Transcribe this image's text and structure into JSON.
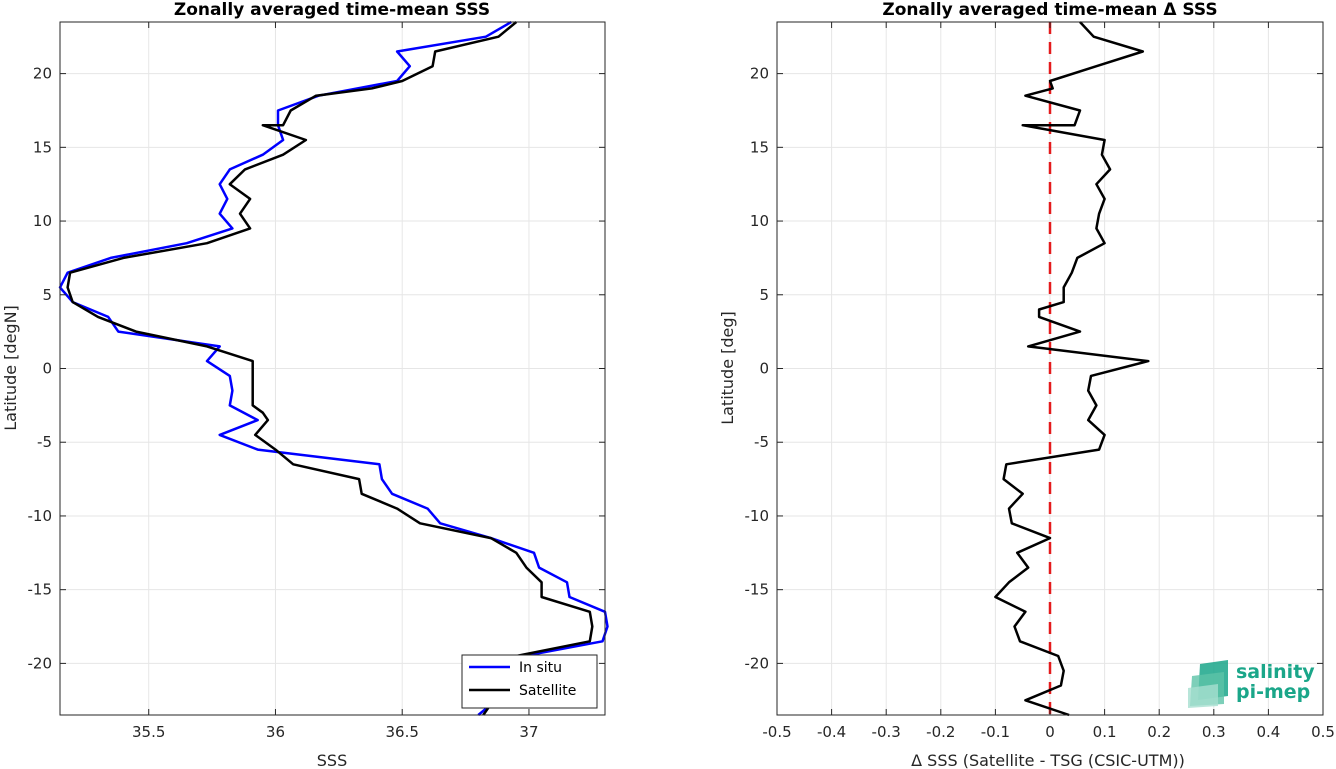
{
  "colors": {
    "in_situ": "#0000ff",
    "satellite": "#000000",
    "zero_line": "#e41a1c",
    "logo": "#1aa689"
  },
  "logo": {
    "line1": "salinity",
    "line2": "pi-mep"
  },
  "chart_data": [
    {
      "type": "line",
      "title": "Zonally averaged time-mean SSS",
      "xlabel": "SSS",
      "ylabel": "Latitude [degN]",
      "xlim": [
        35.15,
        37.3
      ],
      "ylim": [
        -23.5,
        23.5
      ],
      "xticks": [
        35.5,
        36,
        36.5,
        37
      ],
      "xtick_labels": [
        "35.5",
        "36",
        "36.5",
        "37"
      ],
      "yticks": [
        -20,
        -15,
        -10,
        -5,
        0,
        5,
        10,
        15,
        20
      ],
      "ytick_labels": [
        "-20",
        "-15",
        "-10",
        "-5",
        "0",
        "5",
        "10",
        "15",
        "20"
      ],
      "grid": true,
      "legend_position": "bottom-right",
      "series": [
        {
          "name": "In situ",
          "color": "#0000ff",
          "points": [
            [
              36.93,
              23.5
            ],
            [
              36.83,
              22.5
            ],
            [
              36.48,
              21.5
            ],
            [
              36.53,
              20.5
            ],
            [
              36.48,
              19.5
            ],
            [
              36.17,
              18.5
            ],
            [
              36.01,
              17.5
            ],
            [
              36.01,
              16.5
            ],
            [
              36.03,
              15.5
            ],
            [
              35.95,
              14.5
            ],
            [
              35.82,
              13.5
            ],
            [
              35.78,
              12.5
            ],
            [
              35.81,
              11.5
            ],
            [
              35.78,
              10.5
            ],
            [
              35.83,
              9.5
            ],
            [
              35.65,
              8.5
            ],
            [
              35.35,
              7.5
            ],
            [
              35.18,
              6.5
            ],
            [
              35.15,
              5.5
            ],
            [
              35.2,
              4.5
            ],
            [
              35.34,
              3.5
            ],
            [
              35.38,
              2.5
            ],
            [
              35.78,
              1.5
            ],
            [
              35.73,
              0.5
            ],
            [
              35.82,
              -0.5
            ],
            [
              35.83,
              -1.5
            ],
            [
              35.82,
              -2.5
            ],
            [
              35.93,
              -3.5
            ],
            [
              35.78,
              -4.5
            ],
            [
              35.93,
              -5.5
            ],
            [
              36.41,
              -6.5
            ],
            [
              36.42,
              -7.5
            ],
            [
              36.46,
              -8.5
            ],
            [
              36.6,
              -9.5
            ],
            [
              36.65,
              -10.5
            ],
            [
              36.85,
              -11.5
            ],
            [
              37.02,
              -12.5
            ],
            [
              37.04,
              -13.5
            ],
            [
              37.15,
              -14.5
            ],
            [
              37.16,
              -15.5
            ],
            [
              37.3,
              -16.5
            ],
            [
              37.31,
              -17.5
            ],
            [
              37.29,
              -18.5
            ],
            [
              36.98,
              -19.5
            ],
            [
              36.93,
              -20.5
            ],
            [
              36.9,
              -21.5
            ],
            [
              36.87,
              -22.5
            ],
            [
              36.8,
              -23.5
            ]
          ]
        },
        {
          "name": "Satellite",
          "color": "#000000",
          "points": [
            [
              36.95,
              23.5
            ],
            [
              36.88,
              22.5
            ],
            [
              36.63,
              21.5
            ],
            [
              36.62,
              20.5
            ],
            [
              36.5,
              19.5
            ],
            [
              36.38,
              19.0
            ],
            [
              36.16,
              18.5
            ],
            [
              36.06,
              17.5
            ],
            [
              36.03,
              16.5
            ],
            [
              35.95,
              16.5
            ],
            [
              36.12,
              15.5
            ],
            [
              36.03,
              14.5
            ],
            [
              35.88,
              13.5
            ],
            [
              35.82,
              12.5
            ],
            [
              35.9,
              11.5
            ],
            [
              35.86,
              10.5
            ],
            [
              35.9,
              9.5
            ],
            [
              35.73,
              8.5
            ],
            [
              35.4,
              7.5
            ],
            [
              35.19,
              6.5
            ],
            [
              35.18,
              5.5
            ],
            [
              35.2,
              4.5
            ],
            [
              35.3,
              3.5
            ],
            [
              35.45,
              2.5
            ],
            [
              35.73,
              1.5
            ],
            [
              35.91,
              0.5
            ],
            [
              35.91,
              -0.5
            ],
            [
              35.91,
              -1.5
            ],
            [
              35.91,
              -2.5
            ],
            [
              35.95,
              -3.0
            ],
            [
              35.97,
              -3.5
            ],
            [
              35.92,
              -4.5
            ],
            [
              36.0,
              -5.5
            ],
            [
              36.07,
              -6.5
            ],
            [
              36.33,
              -7.5
            ],
            [
              36.34,
              -8.5
            ],
            [
              36.48,
              -9.5
            ],
            [
              36.57,
              -10.5
            ],
            [
              36.85,
              -11.5
            ],
            [
              36.95,
              -12.5
            ],
            [
              36.99,
              -13.5
            ],
            [
              37.05,
              -14.5
            ],
            [
              37.05,
              -15.5
            ],
            [
              37.24,
              -16.5
            ],
            [
              37.25,
              -17.5
            ],
            [
              37.24,
              -18.5
            ],
            [
              36.95,
              -19.5
            ],
            [
              36.9,
              -20.5
            ],
            [
              36.88,
              -21.5
            ],
            [
              36.86,
              -22.5
            ],
            [
              36.82,
              -23.5
            ]
          ]
        }
      ]
    },
    {
      "type": "line",
      "title": "Zonally averaged time-mean Δ SSS",
      "xlabel": "Δ SSS (Satellite - TSG (CSIC-UTM))",
      "ylabel": "Latitude [deg]",
      "xlim": [
        -0.5,
        0.5
      ],
      "ylim": [
        -23.5,
        23.5
      ],
      "xticks": [
        -0.5,
        -0.4,
        -0.3,
        -0.2,
        -0.1,
        0,
        0.1,
        0.2,
        0.3,
        0.4,
        0.5
      ],
      "xtick_labels": [
        "-0.5",
        "-0.4",
        "-0.3",
        "-0.2",
        "-0.1",
        "0",
        "0.1",
        "0.2",
        "0.3",
        "0.4",
        "0.5"
      ],
      "yticks": [
        -20,
        -15,
        -10,
        -5,
        0,
        5,
        10,
        15,
        20
      ],
      "ytick_labels": [
        "-20",
        "-15",
        "-10",
        "-5",
        "0",
        "5",
        "10",
        "15",
        "20"
      ],
      "grid": true,
      "reference_line": {
        "x": 0,
        "style": "dashed",
        "color": "#e41a1c"
      },
      "series": [
        {
          "color": "#000000",
          "points": [
            [
              0.055,
              23.5
            ],
            [
              0.08,
              22.5
            ],
            [
              0.17,
              21.5
            ],
            [
              0.085,
              20.5
            ],
            [
              0.0,
              19.5
            ],
            [
              0.005,
              19.0
            ],
            [
              -0.045,
              18.5
            ],
            [
              0.055,
              17.5
            ],
            [
              0.045,
              16.5
            ],
            [
              -0.05,
              16.5
            ],
            [
              0.1,
              15.5
            ],
            [
              0.095,
              14.5
            ],
            [
              0.11,
              13.5
            ],
            [
              0.085,
              12.5
            ],
            [
              0.1,
              11.5
            ],
            [
              0.09,
              10.5
            ],
            [
              0.085,
              9.5
            ],
            [
              0.1,
              8.5
            ],
            [
              0.05,
              7.5
            ],
            [
              0.04,
              6.5
            ],
            [
              0.025,
              5.5
            ],
            [
              0.025,
              4.5
            ],
            [
              -0.02,
              4.0
            ],
            [
              -0.02,
              3.5
            ],
            [
              0.055,
              2.5
            ],
            [
              -0.04,
              1.5
            ],
            [
              0.18,
              0.5
            ],
            [
              0.075,
              -0.5
            ],
            [
              0.07,
              -1.5
            ],
            [
              0.085,
              -2.5
            ],
            [
              0.07,
              -3.5
            ],
            [
              0.1,
              -4.5
            ],
            [
              0.09,
              -5.5
            ],
            [
              -0.08,
              -6.5
            ],
            [
              -0.085,
              -7.5
            ],
            [
              -0.05,
              -8.5
            ],
            [
              -0.075,
              -9.5
            ],
            [
              -0.07,
              -10.5
            ],
            [
              0.0,
              -11.5
            ],
            [
              -0.06,
              -12.5
            ],
            [
              -0.04,
              -13.5
            ],
            [
              -0.075,
              -14.5
            ],
            [
              -0.1,
              -15.5
            ],
            [
              -0.045,
              -16.5
            ],
            [
              -0.065,
              -17.5
            ],
            [
              -0.055,
              -18.5
            ],
            [
              0.015,
              -19.5
            ],
            [
              0.025,
              -20.5
            ],
            [
              0.02,
              -21.5
            ],
            [
              -0.045,
              -22.5
            ],
            [
              0.035,
              -23.5
            ]
          ]
        }
      ]
    }
  ]
}
